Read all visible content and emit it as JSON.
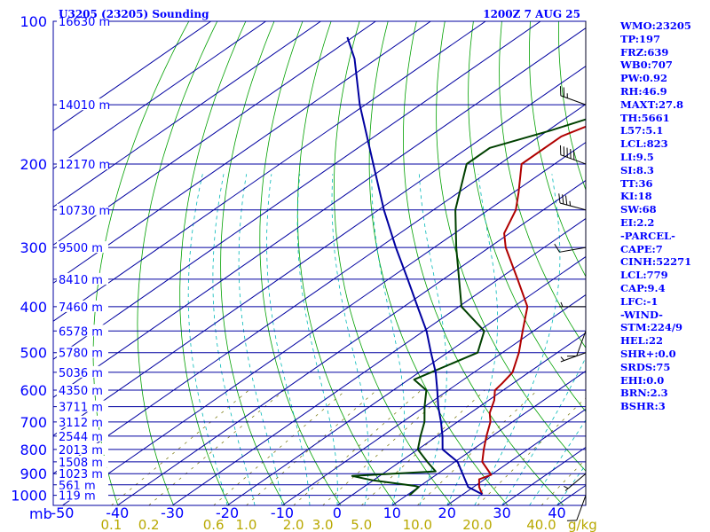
{
  "chart_data": {
    "type": "skew-t",
    "station_title": "U3205 (23205) Sounding",
    "time_label": "1200Z  7 AUG 25",
    "pressure_axis": {
      "unit_label": "mb",
      "ticks": [
        100,
        200,
        300,
        400,
        500,
        600,
        700,
        800,
        900,
        1000
      ],
      "range": [
        1050,
        100
      ],
      "scale": "log"
    },
    "temperature_axis": {
      "ticks": [
        -50,
        -40,
        -30,
        -20,
        -10,
        0,
        10,
        20,
        30,
        40
      ],
      "range": [
        -50,
        47
      ],
      "skewed": true
    },
    "mixing_ratio": {
      "unit_label": "g/kg",
      "values": [
        "0.1",
        "0.2",
        "0.6",
        "1.0",
        "2.0",
        "3.0",
        "5.0",
        "10.0",
        "20.0",
        "40.0"
      ]
    },
    "height_labels": [
      {
        "p": 100,
        "label": "16630 m"
      },
      {
        "p": 150,
        "label": "14010 m"
      },
      {
        "p": 200,
        "label": "12170 m"
      },
      {
        "p": 250,
        "label": "10730 m"
      },
      {
        "p": 300,
        "label": "9500 m"
      },
      {
        "p": 350,
        "label": "8410 m"
      },
      {
        "p": 400,
        "label": "7460 m"
      },
      {
        "p": 450,
        "label": "6578 m"
      },
      {
        "p": 500,
        "label": "5780 m"
      },
      {
        "p": 550,
        "label": "5036 m"
      },
      {
        "p": 600,
        "label": "4350 m"
      },
      {
        "p": 650,
        "label": "3711 m"
      },
      {
        "p": 700,
        "label": "3112 m"
      },
      {
        "p": 750,
        "label": "2544 m"
      },
      {
        "p": 800,
        "label": "2013 m"
      },
      {
        "p": 850,
        "label": "1508 m"
      },
      {
        "p": 900,
        "label": "1023 m"
      },
      {
        "p": 950,
        "label": "561 m"
      },
      {
        "p": 1000,
        "label": "119 m"
      }
    ],
    "series": [
      {
        "color": "#b00000",
        "points": [
          {
            "p": 995,
            "t": 23.5
          },
          {
            "p": 960,
            "t": 21
          },
          {
            "p": 925,
            "t": 19
          },
          {
            "p": 905,
            "t": 20
          },
          {
            "p": 850,
            "t": 15
          },
          {
            "p": 800,
            "t": 12
          },
          {
            "p": 750,
            "t": 9
          },
          {
            "p": 700,
            "t": 6
          },
          {
            "p": 670,
            "t": 3.5
          },
          {
            "p": 630,
            "t": 1
          },
          {
            "p": 600,
            "t": -1.5
          },
          {
            "p": 580,
            "t": -2
          },
          {
            "p": 550,
            "t": -3
          },
          {
            "p": 500,
            "t": -7
          },
          {
            "p": 450,
            "t": -12
          },
          {
            "p": 400,
            "t": -17.5
          },
          {
            "p": 350,
            "t": -26.5
          },
          {
            "p": 300,
            "t": -37
          },
          {
            "p": 280,
            "t": -41
          },
          {
            "p": 250,
            "t": -45
          },
          {
            "p": 230,
            "t": -49
          },
          {
            "p": 200,
            "t": -56
          },
          {
            "p": 175,
            "t": -56
          },
          {
            "p": 150,
            "t": -50
          },
          {
            "p": 130,
            "t": -51
          },
          {
            "p": 110,
            "t": -48
          },
          {
            "p": 100,
            "t": -48
          }
        ]
      },
      {
        "color": "#004000",
        "points": [
          {
            "p": 1000,
            "t": 10.5
          },
          {
            "p": 960,
            "t": 10
          },
          {
            "p": 955,
            "t": 9
          },
          {
            "p": 930,
            "t": 0
          },
          {
            "p": 910,
            "t": -5
          },
          {
            "p": 890,
            "t": 9
          },
          {
            "p": 850,
            "t": 5
          },
          {
            "p": 800,
            "t": 0
          },
          {
            "p": 750,
            "t": -3
          },
          {
            "p": 700,
            "t": -6
          },
          {
            "p": 650,
            "t": -10
          },
          {
            "p": 600,
            "t": -14
          },
          {
            "p": 570,
            "t": -19
          },
          {
            "p": 500,
            "t": -14.5
          },
          {
            "p": 450,
            "t": -19
          },
          {
            "p": 400,
            "t": -29.5
          },
          {
            "p": 300,
            "t": -46
          },
          {
            "p": 250,
            "t": -56
          },
          {
            "p": 200,
            "t": -66
          },
          {
            "p": 185,
            "t": -66
          },
          {
            "p": 170,
            "t": -59.5
          },
          {
            "p": 150,
            "t": -51.5
          },
          {
            "p": 140,
            "t": -53
          },
          {
            "p": 125,
            "t": -55
          },
          {
            "p": 110,
            "t": -58
          },
          {
            "p": 100,
            "t": -60
          }
        ]
      },
      {
        "color": "#0000a0",
        "points": [
          {
            "p": 995,
            "t": 23.5
          },
          {
            "p": 960,
            "t": 19
          },
          {
            "p": 900,
            "t": 14.5
          },
          {
            "p": 850,
            "t": 10.5
          },
          {
            "p": 800,
            "t": 4.5
          },
          {
            "p": 750,
            "t": 1
          },
          {
            "p": 700,
            "t": -3
          },
          {
            "p": 650,
            "t": -7.5
          },
          {
            "p": 600,
            "t": -12
          },
          {
            "p": 550,
            "t": -17
          },
          {
            "p": 500,
            "t": -23
          },
          {
            "p": 450,
            "t": -29.5
          },
          {
            "p": 400,
            "t": -37.5
          },
          {
            "p": 350,
            "t": -46.5
          },
          {
            "p": 300,
            "t": -57
          },
          {
            "p": 250,
            "t": -69
          },
          {
            "p": 200,
            "t": -83
          },
          {
            "p": 150,
            "t": -101
          },
          {
            "p": 120,
            "t": -114
          },
          {
            "p": 108,
            "t": -121
          }
        ]
      }
    ],
    "wind_barbs": [
      {
        "p": 150,
        "dir": 290,
        "kt": 25
      },
      {
        "p": 200,
        "dir": 290,
        "kt": 50
      },
      {
        "p": 250,
        "dir": 285,
        "kt": 35
      },
      {
        "p": 300,
        "dir": 260,
        "kt": 10
      },
      {
        "p": 400,
        "dir": 270,
        "kt": 5
      },
      {
        "p": 450,
        "dir": 200,
        "kt": 10
      },
      {
        "p": 500,
        "dir": 250,
        "kt": 5
      },
      {
        "p": 900,
        "dir": 230,
        "kt": 5
      },
      {
        "p": 1000,
        "dir": 200,
        "kt": 10
      }
    ],
    "colors": {
      "isobar": "#0000a0",
      "isotherm": "#0000a0",
      "dry_adiabat": "#00a000",
      "moist_adiabat": "#00b8b8",
      "mixing_ratio_line": "#707000",
      "wind_barb": "#000000"
    }
  },
  "indices": [
    "WMO:23205",
    "TP:197",
    "FRZ:639",
    "WB0:707",
    "PW:0.92",
    "RH:46.9",
    "MAXT:27.8",
    "TH:5661",
    "L57:5.1",
    "LCL:823",
    "LI:9.5",
    "SI:8.3",
    "TT:36",
    "KI:18",
    "SW:68",
    "EI:2.2",
    "-PARCEL-",
    "CAPE:7",
    "CINH:52271",
    "LCL:779",
    "CAP:9.4",
    "LFC:-1",
    "-WIND-",
    "STM:224/9",
    "HEL:22",
    "SHR+:0.0",
    "SRDS:75",
    "EHI:0.0",
    "BRN:2.3",
    "BSHR:3"
  ]
}
